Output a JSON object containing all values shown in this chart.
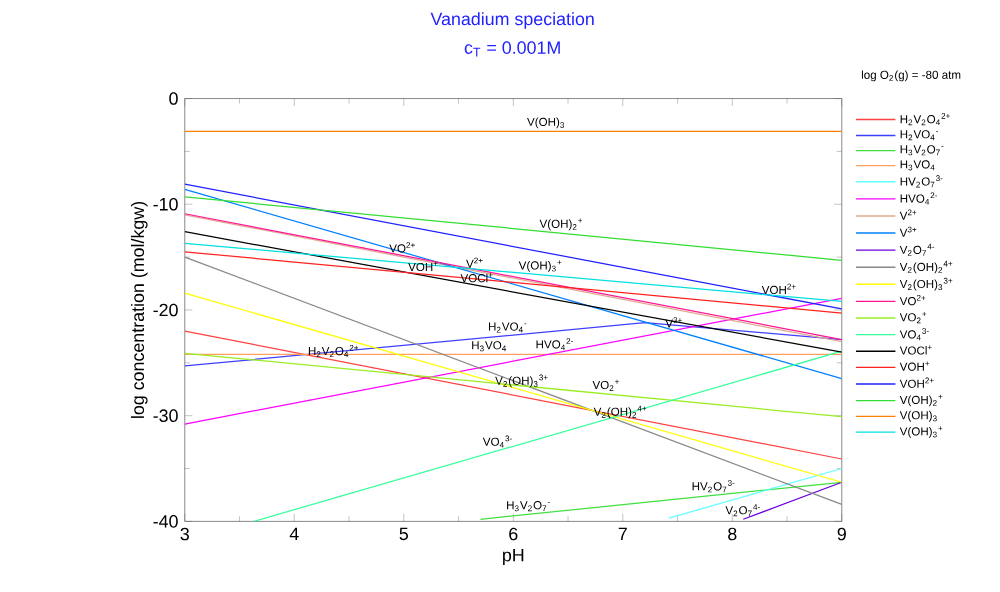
{
  "chart_data": {
    "type": "line",
    "title": "Vanadium speciation",
    "subtitle": "c$_{T}$ = 0.001M",
    "xlabel": "pH",
    "ylabel": "log concentration (mol/kgw)",
    "legend_title": "log O$_{2}$(g) = -80 atm",
    "legend": "right",
    "xlim": [
      3,
      9
    ],
    "xticks": [
      3,
      4,
      5,
      6,
      7,
      8,
      9
    ],
    "ylim": [
      -40,
      0
    ],
    "yticks": [
      -40,
      -30,
      -20,
      -10,
      0
    ],
    "series": [
      {
        "name": "H$_{2}$V$_{2}$O$_{4}$$^{2+}$",
        "color": "#ff4040",
        "x": [
          3,
          9
        ],
        "values": [
          -22.0,
          -34.1
        ]
      },
      {
        "name": "H$_{2}$VO$_{4}$$^{-}$",
        "color": "#3f3fff",
        "x": [
          3,
          7.2,
          9
        ],
        "values": [
          -25.3,
          -21.2,
          -22.8
        ]
      },
      {
        "name": "H$_{3}$V$_{2}$O$_{7}$$^{-}$",
        "color": "#40e040",
        "x": [
          5.7,
          9
        ],
        "values": [
          -39.8,
          -36.3
        ]
      },
      {
        "name": "H$_{3}$VO$_{4}$",
        "color": "#ffa060",
        "x": [
          3,
          9
        ],
        "values": [
          -24.2,
          -24.2
        ]
      },
      {
        "name": "HV$_{2}$O$_{7}$$^{3-}$",
        "color": "#60ffff",
        "x": [
          7.42,
          9
        ],
        "values": [
          -39.7,
          -35.0
        ]
      },
      {
        "name": "HVO$_{4}$$^{2-}$",
        "color": "#ff00ff",
        "x": [
          3,
          9
        ],
        "values": [
          -30.8,
          -18.9
        ]
      },
      {
        "name": "V$^{2+}$",
        "color": "#e0a890",
        "x": [
          3,
          9
        ],
        "values": [
          -11.0,
          -23.0
        ]
      },
      {
        "name": "V$^{3+}$",
        "color": "#0080ff",
        "x": [
          3,
          9
        ],
        "values": [
          -8.6,
          -26.5
        ]
      },
      {
        "name": "V$_{2}$O$_{7}$$^{4-}$",
        "color": "#6a00e0",
        "x": [
          8.1,
          9
        ],
        "values": [
          -39.8,
          -36.3
        ]
      },
      {
        "name": "V$_{2}$(OH)$_{2}$$^{4+}$",
        "color": "#888888",
        "x": [
          3,
          9
        ],
        "values": [
          -15.0,
          -38.4
        ]
      },
      {
        "name": "V$_{2}$(OH)$_{3}$$^{3+}$",
        "color": "#ffff00",
        "x": [
          3,
          9
        ],
        "values": [
          -18.4,
          -36.3
        ]
      },
      {
        "name": "VO$^{2+}$",
        "color": "#ff1493",
        "x": [
          3,
          9
        ],
        "values": [
          -10.9,
          -22.8
        ]
      },
      {
        "name": "VO$_{2}$$^{+}$",
        "color": "#99ee22",
        "x": [
          3,
          9
        ],
        "values": [
          -24.1,
          -30.1
        ]
      },
      {
        "name": "VO$_{4}$$^{3-}$",
        "color": "#33ff99",
        "x": [
          3.63,
          9
        ],
        "values": [
          -40.0,
          -23.9
        ]
      },
      {
        "name": "VOCl$^{+}$",
        "color": "#000000",
        "x": [
          3,
          9
        ],
        "values": [
          -12.6,
          -24.0
        ]
      },
      {
        "name": "VOH$^{+}$",
        "color": "#ff2020",
        "x": [
          3,
          9
        ],
        "values": [
          -14.5,
          -20.3
        ]
      },
      {
        "name": "VOH$^{2+}$",
        "color": "#2020ff",
        "x": [
          3,
          9
        ],
        "values": [
          -8.1,
          -19.9
        ]
      },
      {
        "name": "V(OH)$_{2}$$^{+}$",
        "color": "#33dd33",
        "x": [
          3,
          9
        ],
        "values": [
          -9.3,
          -15.3
        ]
      },
      {
        "name": "V(OH)$_{3}$",
        "color": "#ff8000",
        "x": [
          3,
          9
        ],
        "values": [
          -3.1,
          -3.1
        ]
      },
      {
        "name": "V(OH)$_{3}$$^{+}$",
        "color": "#00e0e0",
        "x": [
          3,
          9
        ],
        "values": [
          -13.7,
          -19.2
        ]
      }
    ],
    "annotations": [
      {
        "text": "V(OH)$_{3}$",
        "x": 6.3,
        "y": -3.1
      },
      {
        "text": "V(OH)$_{2}$$^{+}$",
        "x": 6.44,
        "y": -12.74
      },
      {
        "text": "VO$^{2+}$",
        "x": 4.99,
        "y": -14.85
      },
      {
        "text": "V$^{2+}$",
        "x": 5.65,
        "y": -16.3
      },
      {
        "text": "V(OH)$_{3}$$^{+}$",
        "x": 6.25,
        "y": -16.68
      },
      {
        "text": "VOH$^{2+}$",
        "x": 8.43,
        "y": -18.78
      },
      {
        "text": "VOH$^{+}$",
        "x": 5.18,
        "y": -16.61
      },
      {
        "text": "VOCl$^{+}$",
        "x": 5.67,
        "y": -17.67
      },
      {
        "text": "H$_{2}$VO$_{4}$$^{-}$",
        "x": 5.95,
        "y": -22.42
      },
      {
        "text": "H$_{3}$VO$_{4}$",
        "x": 5.78,
        "y": -24.2
      },
      {
        "text": "V$^{3+}$",
        "x": 7.47,
        "y": -21.94
      },
      {
        "text": "HVO$_{4}$$^{2-}$",
        "x": 6.38,
        "y": -24.1
      },
      {
        "text": "VO$_{2}$$^{+}$",
        "x": 6.85,
        "y": -27.95
      },
      {
        "text": "H$_{2}$V$_{2}$O$_{4}$$^{2+}$",
        "x": 4.36,
        "y": -24.74
      },
      {
        "text": "V$_{2}$(OH)$_{3}$$^{3+}$",
        "x": 6.08,
        "y": -27.59
      },
      {
        "text": "VO$_{4}$$^{3-}$",
        "x": 5.86,
        "y": -33.31
      },
      {
        "text": "V$_{2}$(OH)$_{2}$$^{4+}$",
        "x": 6.98,
        "y": -30.52
      },
      {
        "text": "HV$_{2}$O$_{7}$$^{3-}$",
        "x": 7.83,
        "y": -37.54
      },
      {
        "text": "H$_{3}$V$_{2}$O$_{7}$$^{-}$",
        "x": 6.14,
        "y": -39.33
      },
      {
        "text": "V$_{2}$O$_{7}$$^{4-}$",
        "x": 8.1,
        "y": -39.8
      }
    ]
  }
}
